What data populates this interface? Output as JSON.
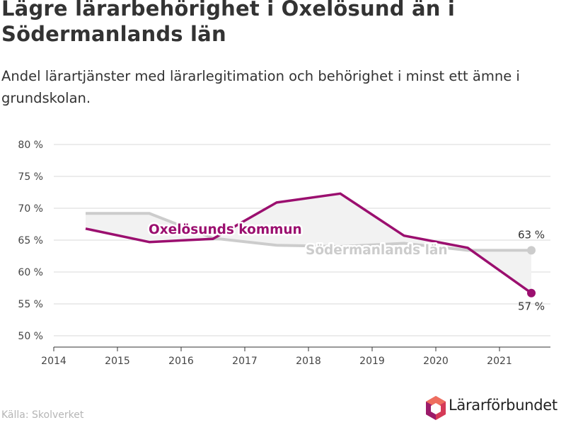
{
  "title": "Lägre lärarbehörighet i Oxelösund än i Södermanlands län",
  "subtitle": "Andel lärartjänster med lärarlegitimation och behörighet i minst ett ämne i grundskolan.",
  "source": "Källa: Skolverket",
  "logo_text": "Lärarförbundet",
  "colors": {
    "oxelosund": "#9B0F6F",
    "sodermanland": "#CCCCCC",
    "band": "#F2F2F2",
    "grid": "#D9D9D9"
  },
  "chart_data": {
    "type": "line",
    "x": [
      2014.5,
      2015.5,
      2016.5,
      2017.5,
      2018.5,
      2019.5,
      2020.5,
      2021.5
    ],
    "series": [
      {
        "name": "Oxelösunds kommun",
        "values": [
          66.8,
          64.7,
          65.2,
          70.9,
          72.3,
          65.7,
          63.8,
          56.7
        ],
        "end_label": "57 %"
      },
      {
        "name": "Södermanlands län",
        "values": [
          69.2,
          69.2,
          65.3,
          64.2,
          64.0,
          64.5,
          63.4,
          63.4
        ],
        "end_label": "63 %"
      }
    ],
    "xticks": [
      "2014",
      "2015",
      "2016",
      "2017",
      "2018",
      "2019",
      "2020",
      "2021"
    ],
    "yticks": [
      "50 %",
      "55 %",
      "60 %",
      "65 %",
      "70 %",
      "75 %",
      "80 %"
    ],
    "xlim": [
      2014,
      2021.8
    ],
    "ylim": [
      50,
      80
    ],
    "grid": true
  }
}
